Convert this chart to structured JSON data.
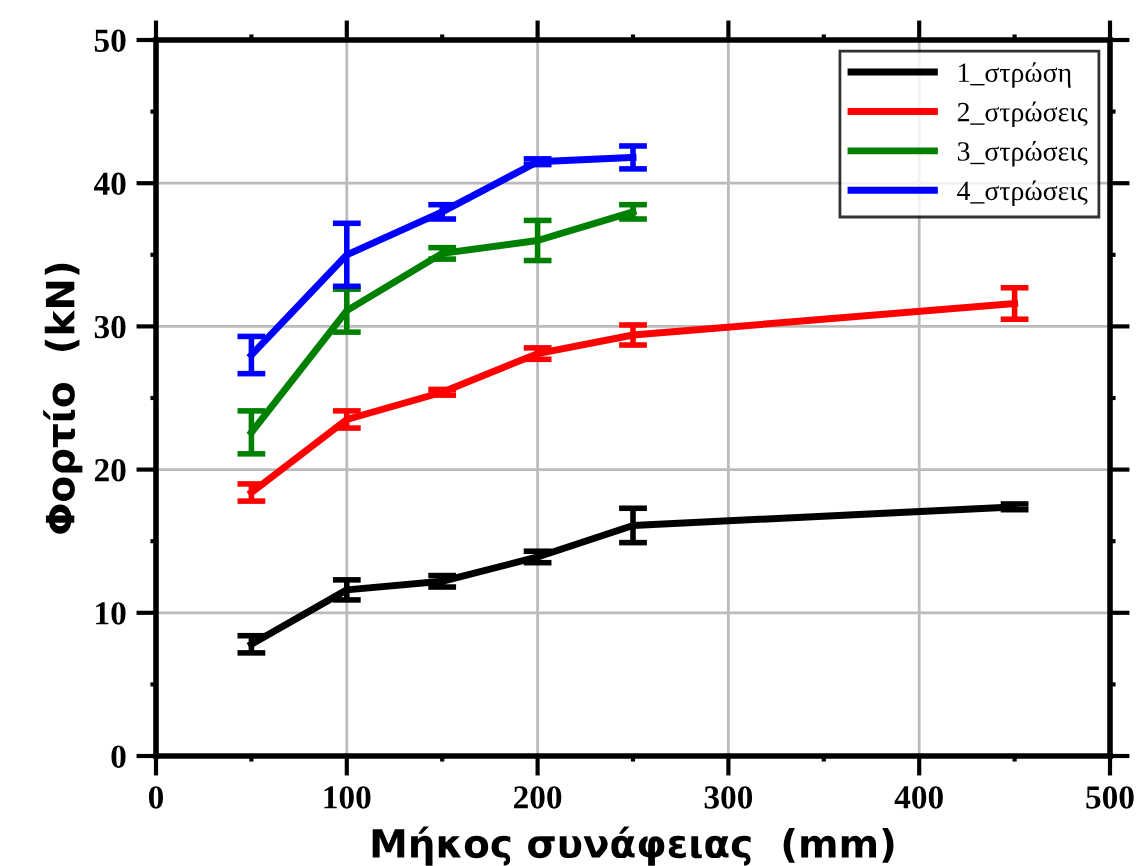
{
  "chart_data": {
    "type": "line",
    "xlabel": "Μήκος συνάφειας  (mm)",
    "ylabel": "Φορτίο  (kN)",
    "xlim": [
      0,
      500
    ],
    "xticks": [
      0,
      100,
      200,
      300,
      400,
      500
    ],
    "ylim": [
      0,
      50
    ],
    "yticks": [
      0,
      10,
      20,
      30,
      40,
      50
    ],
    "grid": true,
    "legend": "top right",
    "marker": "none",
    "line_style": "solid",
    "series": [
      {
        "name": "1_στρώση",
        "color": "#000000",
        "x": [
          50,
          100,
          150,
          200,
          250,
          450
        ],
        "values": [
          7.8,
          11.6,
          12.2,
          13.9,
          16.1,
          17.4
        ],
        "errors": [
          0.6,
          0.7,
          0.4,
          0.4,
          1.2,
          0.2
        ]
      },
      {
        "name": "2_στρώσεις",
        "color": "#ff0000",
        "x": [
          50,
          100,
          150,
          200,
          250,
          450
        ],
        "values": [
          18.4,
          23.5,
          25.4,
          28.1,
          29.4,
          31.6
        ],
        "errors": [
          0.6,
          0.6,
          0.2,
          0.4,
          0.7,
          1.1
        ]
      },
      {
        "name": "3_στρώσεις",
        "color": "#008000",
        "x": [
          50,
          100,
          150,
          200,
          250
        ],
        "values": [
          22.6,
          31.1,
          35.1,
          36.0,
          38.0
        ],
        "errors": [
          1.5,
          1.5,
          0.4,
          1.4,
          0.5
        ]
      },
      {
        "name": "4_στρώσεις",
        "color": "#0000ff",
        "x": [
          50,
          100,
          150,
          200,
          250
        ],
        "values": [
          28.0,
          35.0,
          38.0,
          41.5,
          41.8
        ],
        "errors": [
          1.3,
          2.2,
          0.5,
          0.2,
          0.8
        ]
      }
    ]
  }
}
